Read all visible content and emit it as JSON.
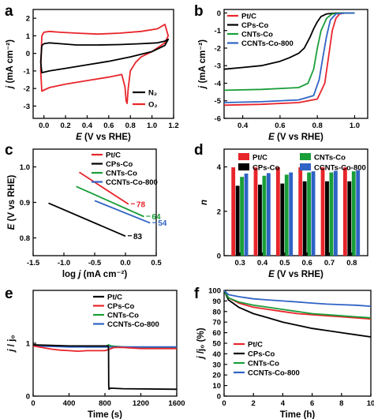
{
  "chart_data": [
    {
      "panel": "a",
      "type": "line",
      "xlabel": "E (V vs RHE)",
      "ylabel": "j (mA cm⁻²)",
      "xlim": [
        -0.1,
        1.2
      ],
      "ylim": [
        -3.7,
        2.5
      ],
      "xticks": [
        "0.0",
        "0.2",
        "0.4",
        "0.6",
        "0.8",
        "1.0",
        "1.2"
      ],
      "yticks": [
        "-3",
        "-2",
        "-1",
        "0",
        "1",
        "2"
      ],
      "legend_position": "bottom-right",
      "series": [
        {
          "name": "N₂",
          "color": "#000000",
          "x": [
            -0.02,
            0.0,
            0.05,
            0.15,
            0.3,
            0.5,
            0.7,
            0.9,
            1.05,
            1.12,
            1.15,
            1.12,
            1.0,
            0.8,
            0.6,
            0.4,
            0.2,
            0.05,
            -0.02,
            -0.03,
            -0.02
          ],
          "y": [
            0.45,
            0.55,
            0.6,
            0.55,
            0.48,
            0.48,
            0.5,
            0.55,
            0.6,
            0.7,
            0.8,
            0.45,
            0.1,
            -0.2,
            -0.45,
            -0.65,
            -0.85,
            -1.0,
            -1.1,
            -0.5,
            0.45
          ]
        },
        {
          "name": "O₂",
          "color": "#e8252b",
          "x": [
            -0.02,
            0.0,
            0.05,
            0.15,
            0.3,
            0.5,
            0.7,
            0.9,
            1.05,
            1.12,
            1.15,
            1.12,
            1.0,
            0.9,
            0.85,
            0.8,
            0.78,
            0.77,
            0.76,
            0.75,
            0.72,
            0.6,
            0.4,
            0.2,
            0.05,
            -0.02,
            -0.03,
            -0.02
          ],
          "y": [
            1.0,
            1.2,
            1.25,
            1.2,
            1.15,
            1.1,
            1.15,
            1.25,
            1.4,
            1.65,
            1.0,
            0.6,
            0.1,
            -0.2,
            -0.5,
            -1.0,
            -2.0,
            -2.85,
            -2.7,
            -1.9,
            -1.2,
            -1.35,
            -1.55,
            -1.75,
            -1.95,
            -2.15,
            -1.0,
            1.0
          ]
        }
      ]
    },
    {
      "panel": "b",
      "type": "line",
      "xlabel": "E (V vs RHE)",
      "ylabel": "j (mA cm⁻²)",
      "xlim": [
        0.3,
        1.07
      ],
      "ylim": [
        -6,
        0.2
      ],
      "xticks": [
        "0.4",
        "0.6",
        "0.8",
        "1.0"
      ],
      "yticks": [
        "-6",
        "-5",
        "-4",
        "-3",
        "-2",
        "-1",
        "0"
      ],
      "legend_position": "top-left",
      "series": [
        {
          "name": "Pt/C",
          "color": "#e8252b",
          "x": [
            0.3,
            0.5,
            0.7,
            0.8,
            0.84,
            0.86,
            0.88,
            0.9,
            0.92,
            0.95,
            1.0
          ],
          "y": [
            -5.25,
            -5.2,
            -5.1,
            -4.9,
            -4.0,
            -2.5,
            -1.0,
            -0.3,
            -0.05,
            0.0,
            0.0
          ]
        },
        {
          "name": "CPs-Co",
          "color": "#000000",
          "x": [
            0.3,
            0.4,
            0.5,
            0.6,
            0.65,
            0.7,
            0.73,
            0.76,
            0.78,
            0.8,
            0.82,
            0.85,
            0.9,
            1.0
          ],
          "y": [
            -3.2,
            -3.1,
            -3.0,
            -2.75,
            -2.55,
            -2.3,
            -2.0,
            -1.4,
            -0.9,
            -0.5,
            -0.2,
            -0.05,
            0.0,
            0.0
          ]
        },
        {
          "name": "CNTs-Co",
          "color": "#1a9e3a",
          "x": [
            0.3,
            0.5,
            0.7,
            0.75,
            0.78,
            0.8,
            0.82,
            0.85,
            0.88,
            0.92,
            1.0
          ],
          "y": [
            -4.4,
            -4.35,
            -4.25,
            -4.0,
            -3.2,
            -2.0,
            -1.0,
            -0.3,
            -0.05,
            0.0,
            0.0
          ]
        },
        {
          "name": "CCNTs-Co-800",
          "color": "#2f63c5",
          "x": [
            0.3,
            0.5,
            0.7,
            0.78,
            0.81,
            0.83,
            0.85,
            0.87,
            0.9,
            0.95,
            1.0
          ],
          "y": [
            -5.1,
            -5.05,
            -4.95,
            -4.7,
            -3.8,
            -2.5,
            -1.3,
            -0.4,
            -0.05,
            0.0,
            0.0
          ]
        }
      ]
    },
    {
      "panel": "c",
      "type": "line",
      "xlabel": "log j (mA cm⁻²)",
      "ylabel": "E (V vs RHE)",
      "xlim": [
        -1.5,
        0.5
      ],
      "ylim": [
        0.75,
        1.05
      ],
      "xticks": [
        "-1.5",
        "-1.0",
        "-0.5",
        "0.0",
        "0.5"
      ],
      "yticks": [
        "0.8",
        "0.9",
        "1.0"
      ],
      "legend_position": "top-right",
      "annotations": [
        "78",
        "64",
        "54",
        "83"
      ],
      "series": [
        {
          "name": "Pt/C",
          "color": "#e8252b",
          "x": [
            -0.75,
            0.05
          ],
          "y": [
            0.985,
            0.895
          ]
        },
        {
          "name": "CPs-Co",
          "color": "#000000",
          "x": [
            -1.25,
            0.0
          ],
          "y": [
            0.898,
            0.805
          ]
        },
        {
          "name": "CNTs-Co",
          "color": "#1a9e3a",
          "x": [
            -0.8,
            0.3
          ],
          "y": [
            0.945,
            0.86
          ]
        },
        {
          "name": "CCNTs-Co-800",
          "color": "#2f63c5",
          "x": [
            -0.5,
            0.4
          ],
          "y": [
            0.905,
            0.842
          ]
        }
      ]
    },
    {
      "panel": "d",
      "type": "bar",
      "xlabel": "E (V vs RHE)",
      "ylabel": "n",
      "categories": [
        "0.3",
        "0.4",
        "0.5",
        "0.6",
        "0.7",
        "0.8"
      ],
      "ylim": [
        0,
        4.8
      ],
      "yticks": [
        "0",
        "2",
        "4"
      ],
      "legend_position": "top",
      "series": [
        {
          "name": "Pt/C",
          "color": "#e8252b",
          "values": [
            3.98,
            3.98,
            3.98,
            3.98,
            3.98,
            3.98
          ]
        },
        {
          "name": "CPs-Co",
          "color": "#000000",
          "values": [
            3.15,
            3.2,
            3.25,
            3.35,
            3.35,
            3.35
          ]
        },
        {
          "name": "CNTs-Co",
          "color": "#1a9e3a",
          "values": [
            3.55,
            3.6,
            3.65,
            3.75,
            3.75,
            3.8
          ]
        },
        {
          "name": "CCNTs-Co-800",
          "color": "#2f63c5",
          "values": [
            3.7,
            3.72,
            3.75,
            3.8,
            3.82,
            3.85
          ]
        }
      ]
    },
    {
      "panel": "e",
      "type": "line",
      "xlabel": "Time (s)",
      "ylabel": "j / j₀",
      "xlim": [
        0,
        1600
      ],
      "ylim": [
        0,
        2.0
      ],
      "xticks": [
        "0",
        "400",
        "800",
        "1200",
        "1600"
      ],
      "yticks": [
        "0",
        "1"
      ],
      "legend_position": "top-right",
      "series": [
        {
          "name": "Pt/C",
          "color": "#000000",
          "x": [
            0,
            200,
            400,
            600,
            800,
            838,
            840,
            842,
            845,
            860,
            1000,
            1600
          ],
          "y": [
            0.97,
            0.96,
            0.95,
            0.95,
            0.95,
            0.95,
            0.85,
            0.2,
            0.13,
            0.15,
            0.14,
            0.13
          ]
        },
        {
          "name": "CPs-Co",
          "color": "#e8252b",
          "x": [
            0,
            100,
            200,
            300,
            400,
            500,
            600,
            700,
            800,
            840,
            900,
            1000,
            1200,
            1400,
            1600
          ],
          "y": [
            0.95,
            0.92,
            0.89,
            0.87,
            0.86,
            0.85,
            0.86,
            0.86,
            0.86,
            0.88,
            0.92,
            0.92,
            0.9,
            0.9,
            0.9
          ]
        },
        {
          "name": "CNTs-Co",
          "color": "#1a9e3a",
          "x": [
            0,
            200,
            400,
            600,
            800,
            840,
            870,
            1000,
            1200,
            1400,
            1600
          ],
          "y": [
            0.97,
            0.95,
            0.94,
            0.93,
            0.93,
            0.97,
            0.95,
            0.93,
            0.92,
            0.92,
            0.91
          ]
        },
        {
          "name": "CCNTs-Co-800",
          "color": "#2f63c5",
          "x": [
            0,
            200,
            400,
            600,
            800,
            1000,
            1200,
            1400,
            1600
          ],
          "y": [
            0.95,
            0.94,
            0.93,
            0.93,
            0.93,
            0.93,
            0.93,
            0.93,
            0.93
          ]
        }
      ]
    },
    {
      "panel": "f",
      "type": "line",
      "xlabel": "Time (h)",
      "ylabel": "j /j₀ (%)",
      "xlim": [
        0,
        10
      ],
      "ylim": [
        0,
        100
      ],
      "xticks": [
        "0",
        "2",
        "4",
        "6",
        "8",
        "10"
      ],
      "yticks": [
        "0",
        "10",
        "20",
        "30",
        "40",
        "50",
        "60",
        "70",
        "80",
        "90",
        "100"
      ],
      "legend_position": "bottom-left",
      "series": [
        {
          "name": "Pt/C",
          "color": "#e8252b",
          "x": [
            0,
            0.3,
            1,
            2,
            3,
            4,
            5,
            6,
            7,
            8,
            9,
            10
          ],
          "y": [
            100,
            93,
            88,
            84,
            82,
            80,
            78,
            77,
            76,
            75,
            74,
            73
          ]
        },
        {
          "name": "CPs-Co",
          "color": "#000000",
          "x": [
            0,
            0.3,
            1,
            2,
            3,
            4,
            5,
            6,
            7,
            8,
            9,
            10
          ],
          "y": [
            100,
            91,
            84,
            78,
            74,
            70,
            67,
            64,
            62,
            60,
            58,
            56
          ]
        },
        {
          "name": "CNTs-Co",
          "color": "#1a9e3a",
          "x": [
            0,
            0.3,
            1,
            2,
            3,
            4,
            5,
            6,
            7,
            8,
            9,
            10
          ],
          "y": [
            100,
            93,
            89,
            86,
            84,
            82,
            80,
            78,
            77,
            76,
            75,
            74
          ]
        },
        {
          "name": "CCNTs-Co-800",
          "color": "#2f63c5",
          "x": [
            0,
            0.3,
            1,
            2,
            3,
            4,
            5,
            6,
            7,
            8,
            9,
            10
          ],
          "y": [
            100,
            96,
            94,
            92,
            91,
            90,
            89,
            88,
            87,
            86.5,
            86,
            85
          ]
        }
      ]
    }
  ]
}
